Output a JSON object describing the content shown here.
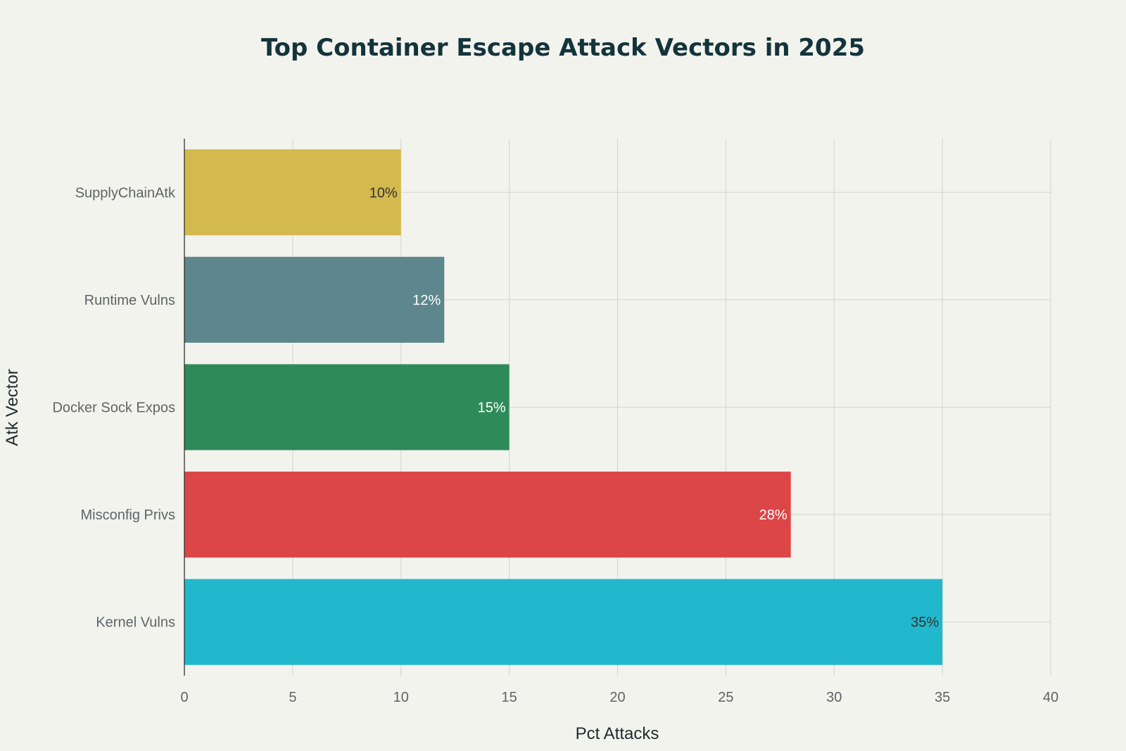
{
  "chart_data": {
    "type": "bar",
    "orientation": "horizontal",
    "title": "Top Container Escape Attack Vectors in 2025",
    "xlabel": "Pct Attacks",
    "ylabel": "Atk Vector",
    "xlim": [
      0,
      40
    ],
    "xticks": [
      0,
      5,
      10,
      15,
      20,
      25,
      30,
      35,
      40
    ],
    "grid": true,
    "categories": [
      "Kernel Vulns",
      "Misconfig Privs",
      "Docker Sock Expos",
      "Runtime Vulns",
      "SupplyChainAtk"
    ],
    "values": [
      35,
      28,
      15,
      12,
      10
    ],
    "data_labels": [
      "35%",
      "28%",
      "15%",
      "12%",
      "10%"
    ],
    "colors": [
      "#21b8cd",
      "#dc4647",
      "#2e8b59",
      "#5d878d",
      "#d3b94e"
    ],
    "label_colors": [
      "#333333",
      "#ffffff",
      "#ffffff",
      "#ffffff",
      "#333333"
    ]
  }
}
